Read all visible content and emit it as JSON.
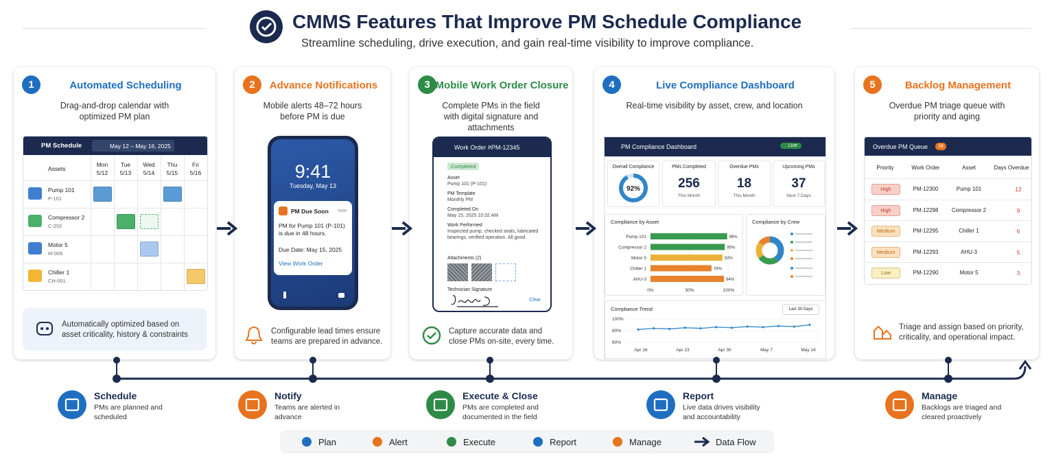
{
  "header": {
    "title": "CMMS Features That Improve PM Schedule Compliance",
    "subtitle": "Streamline scheduling, drive execution, and gain real-time visibility to improve compliance."
  },
  "cards": [
    {
      "number": "1",
      "title": "Automated Scheduling",
      "color": "#1f6fc1",
      "description": "Drag-and-drop calendar with optimized PM plan",
      "note": "Automatically optimized based on asset criticality, history & constraints"
    },
    {
      "number": "2",
      "title": "Advance Notifications",
      "color": "#e8731e",
      "description": "Mobile alerts 48–72 hours before PM is due",
      "note": "Configurable lead times ensure teams are prepared in advance."
    },
    {
      "number": "3",
      "title": "Mobile Work Order Closure",
      "color": "#2e8b47",
      "description": "Complete PMs in the field with digital signature and attachments",
      "note": "Capture accurate data and close PMs on-site, every time."
    },
    {
      "number": "4",
      "title": "Live Compliance Dashboard",
      "color": "#1f6fc1",
      "description": "Real-time visibility by asset, crew, and location"
    },
    {
      "number": "5",
      "title": "Backlog Management",
      "color": "#e8731e",
      "description": "Overdue PM triage queue with priority and aging",
      "note": "Triage and assign based on priority, criticality, and operational impact."
    }
  ],
  "schedule": {
    "title": "PM Schedule",
    "range": "May 12 – May 16, 2025",
    "asset_header": "Assets",
    "days": [
      {
        "day": "Mon",
        "date": "5/12"
      },
      {
        "day": "Tue",
        "date": "5/13"
      },
      {
        "day": "Wed",
        "date": "5/14"
      },
      {
        "day": "Thu",
        "date": "5/15"
      },
      {
        "day": "Fri",
        "date": "5/16"
      }
    ],
    "assets": [
      {
        "name": "Pump 101",
        "id": "P-101",
        "color": "#3f7fd0"
      },
      {
        "name": "Compressor 2",
        "id": "C-202",
        "color": "#4caf6a"
      },
      {
        "name": "Motor 5",
        "id": "M-005",
        "color": "#3f7fd0"
      },
      {
        "name": "Chiller 1",
        "id": "CH-001",
        "color": "#f2b632"
      }
    ]
  },
  "phone": {
    "time": "9:41",
    "date": "Tuesday, May 13",
    "alert_title": "PM Due Soon",
    "alert_time": "now",
    "alert_body": "PM for Pump 101 (P-101) is due in 48 hours.",
    "due": "Due Date: May 15, 2025",
    "link": "View Work Order"
  },
  "work_order": {
    "title": "Work Order #PM-12345",
    "status": "Completed",
    "fields": [
      {
        "label": "Asset",
        "value": "Pump 101 (P-101)"
      },
      {
        "label": "PM Template",
        "value": "Monthly PM"
      },
      {
        "label": "Completed On",
        "value": "May 15, 2025  10:32 AM"
      },
      {
        "label": "Work Performed",
        "value": "Inspected pump, checked seals, lubricated bearings, verified operation. All good."
      }
    ],
    "attachments": "Attachments (2)",
    "signature_label": "Technician Signature",
    "clear": "Clear"
  },
  "dashboard": {
    "title": "PM Compliance Dashboard",
    "live": "Live",
    "gauge": {
      "label": "Overall Compliance",
      "value": 92,
      "value_label": "92%"
    },
    "kpis": [
      {
        "label": "PMs Completed",
        "value": 256,
        "sub": "This Month"
      },
      {
        "label": "Overdue PMs",
        "value": 18,
        "sub": "This Month"
      },
      {
        "label": "Upcoming PMs",
        "value": 37,
        "sub": "Next 7 Days"
      }
    ],
    "by_asset": {
      "title": "Compliance by Asset",
      "categories": [
        "Pump 101",
        "Compressor 2",
        "Motor 5",
        "Chiller 1",
        "AHU-3"
      ],
      "values": [
        98,
        95,
        92,
        78,
        94
      ],
      "value_labels": [
        "98%",
        "95%",
        "92%",
        "78%",
        "94%"
      ],
      "colors": [
        "#3a9a4f",
        "#3a9a4f",
        "#e9b33a",
        "#e8822e",
        "#e8822e"
      ],
      "xlim": [
        0,
        100
      ],
      "xticks": [
        {
          "value": 0,
          "label": "0%"
        },
        {
          "value": 50,
          "label": "50%"
        },
        {
          "value": 100,
          "label": "100%"
        }
      ]
    },
    "by_crew": {
      "title": "Compliance by Crew"
    },
    "trend": {
      "title": "Compliance Trend",
      "range": "Last 30 Days",
      "x_labels": [
        "Apr 16",
        "Apr 23",
        "Apr 30",
        "May 7",
        "May 14"
      ],
      "values": [
        82,
        84,
        83,
        85,
        84,
        86,
        85,
        87,
        86,
        88,
        87,
        90
      ],
      "ylim": [
        60,
        100
      ],
      "yticks": [
        {
          "value": 100,
          "label": "100%"
        },
        {
          "value": 80,
          "label": "80%"
        },
        {
          "value": 60,
          "label": "60%"
        }
      ]
    }
  },
  "queue": {
    "title": "Overdue PM Queue",
    "badge": "18",
    "columns": [
      "Priority",
      "Work Order",
      "Asset",
      "Days Overdue"
    ],
    "rows": [
      {
        "priority": "High",
        "color": "#f8cfc9",
        "text_color": "#c0392b",
        "work_order": "PM-12300",
        "asset": "Pump 101",
        "days": 12
      },
      {
        "priority": "High",
        "color": "#f8cfc9",
        "text_color": "#c0392b",
        "work_order": "PM-12298",
        "asset": "Compressor 2",
        "days": 9
      },
      {
        "priority": "Medium",
        "color": "#fbe0bd",
        "text_color": "#b86a12",
        "work_order": "PM-12295",
        "asset": "Chiller 1",
        "days": 6
      },
      {
        "priority": "Medium",
        "color": "#fbe0bd",
        "text_color": "#b86a12",
        "work_order": "PM-12293",
        "asset": "AHU-3",
        "days": 5
      },
      {
        "priority": "Low",
        "color": "#fbf0c2",
        "text_color": "#8a6d0b",
        "work_order": "PM-12290",
        "asset": "Motor 5",
        "days": 3
      }
    ]
  },
  "stages": [
    {
      "title": "Schedule",
      "text": "PMs are planned and scheduled",
      "color": "#1f6fc1"
    },
    {
      "title": "Notify",
      "text": "Teams are alerted in advance",
      "color": "#e8731e"
    },
    {
      "title": "Execute & Close",
      "text": "PMs are completed and documented in the field",
      "color": "#2e8b47"
    },
    {
      "title": "Report",
      "text": "Live data drives visibility and accountability",
      "color": "#1f6fc1"
    },
    {
      "title": "Manage",
      "text": "Backlogs are triaged and cleared proactively",
      "color": "#e8731e"
    }
  ],
  "legend": [
    {
      "label": "Plan",
      "color": "#1f6fc1"
    },
    {
      "label": "Alert",
      "color": "#e8731e"
    },
    {
      "label": "Execute",
      "color": "#2e8b47"
    },
    {
      "label": "Report",
      "color": "#1f6fc1"
    },
    {
      "label": "Manage",
      "color": "#e8731e"
    },
    {
      "label": "Data Flow",
      "color": "#1b2a4e"
    }
  ]
}
